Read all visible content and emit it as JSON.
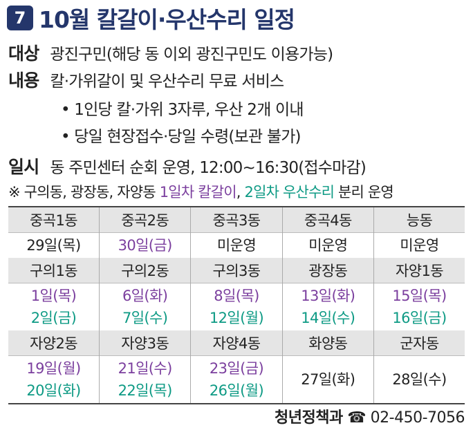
{
  "header": {
    "number": "7",
    "title": "10월 칼갈이·우산수리 일정"
  },
  "info": [
    {
      "label": "대상",
      "text": "광진구민(해당 동 이외 광진구민도 이용가능)"
    },
    {
      "label": "내용",
      "text": "칼·가위갈이 및 우산수리 무료 서비스"
    }
  ],
  "bullets": [
    "1인당 칼·가위 3자루, 우산 2개 이내",
    "당일 현장접수·당일 수령(보관 불가)"
  ],
  "schedule": {
    "label": "일시",
    "text": "동 주민센터 순회 운영, 12:00~16:30(접수마감)"
  },
  "note": {
    "prefix": "※ 구의동, 광장동, 자양동 ",
    "knife": "1일차 칼갈이",
    "sep": ", ",
    "umbrella": "2일차 우산수리",
    "suffix": " 분리 운영"
  },
  "colors": {
    "knife": "#7b3f9e",
    "umbrella": "#0d9a84",
    "plain": "#222222"
  },
  "table": {
    "groups": [
      {
        "names": [
          "중곡1동",
          "중곡2동",
          "중곡3동",
          "중곡4동",
          "능동"
        ],
        "dates": [
          [
            {
              "text": "29일(목)",
              "kind": "plain"
            }
          ],
          [
            {
              "text": "30일(금)",
              "kind": "knife"
            }
          ],
          [
            {
              "text": "미운영",
              "kind": "plain"
            }
          ],
          [
            {
              "text": "미운영",
              "kind": "plain"
            }
          ],
          [
            {
              "text": "미운영",
              "kind": "plain"
            }
          ]
        ]
      },
      {
        "names": [
          "구의1동",
          "구의2동",
          "구의3동",
          "광장동",
          "자양1동"
        ],
        "dates": [
          [
            {
              "text": "1일(목)",
              "kind": "knife"
            },
            {
              "text": "2일(금)",
              "kind": "umbrella"
            }
          ],
          [
            {
              "text": "6일(화)",
              "kind": "knife"
            },
            {
              "text": "7일(수)",
              "kind": "umbrella"
            }
          ],
          [
            {
              "text": "8일(목)",
              "kind": "knife"
            },
            {
              "text": "12일(월)",
              "kind": "umbrella"
            }
          ],
          [
            {
              "text": "13일(화)",
              "kind": "knife"
            },
            {
              "text": "14일(수)",
              "kind": "umbrella"
            }
          ],
          [
            {
              "text": "15일(목)",
              "kind": "knife"
            },
            {
              "text": "16일(금)",
              "kind": "umbrella"
            }
          ]
        ]
      },
      {
        "names": [
          "자양2동",
          "자양3동",
          "자양4동",
          "화양동",
          "군자동"
        ],
        "dates": [
          [
            {
              "text": "19일(월)",
              "kind": "knife"
            },
            {
              "text": "20일(화)",
              "kind": "umbrella"
            }
          ],
          [
            {
              "text": "21일(수)",
              "kind": "knife"
            },
            {
              "text": "22일(목)",
              "kind": "umbrella"
            }
          ],
          [
            {
              "text": "23일(금)",
              "kind": "knife"
            },
            {
              "text": "26일(월)",
              "kind": "umbrella"
            }
          ],
          [
            {
              "text": "27일(화)",
              "kind": "plain"
            }
          ],
          [
            {
              "text": "28일(수)",
              "kind": "plain"
            }
          ]
        ]
      }
    ]
  },
  "footer": {
    "dept": "청년정책과",
    "icon": "☎",
    "phone": "02-450-7056"
  }
}
